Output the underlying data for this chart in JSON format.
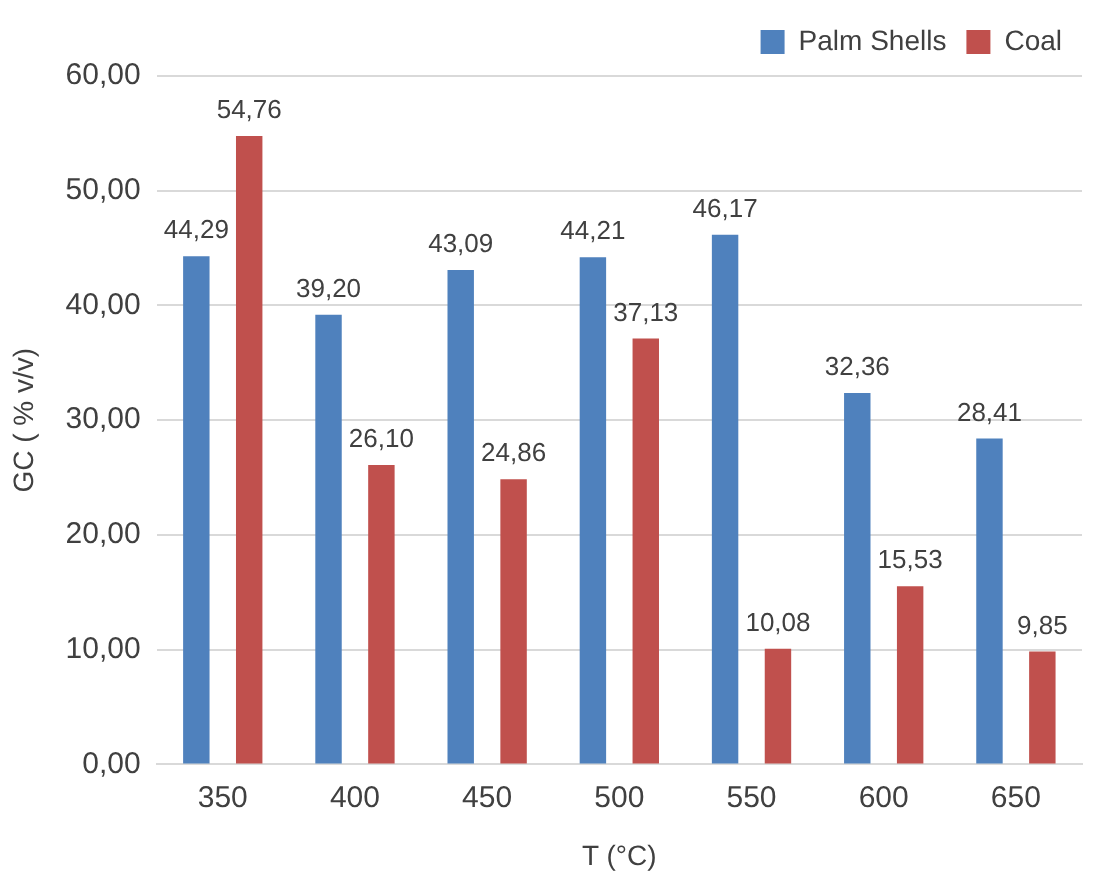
{
  "chart_data": {
    "type": "bar",
    "xlabel": "T (°C)",
    "ylabel": "GC ( % v/v)",
    "categories": [
      "350",
      "400",
      "450",
      "500",
      "550",
      "600",
      "650"
    ],
    "series": [
      {
        "name": "Palm Shells",
        "color": "#4f81bd",
        "values": [
          44.29,
          39.2,
          43.09,
          44.21,
          46.17,
          32.36,
          28.41
        ],
        "value_labels": [
          "44,29",
          "39,20",
          "43,09",
          "44,21",
          "46,17",
          "32,36",
          "28,41"
        ]
      },
      {
        "name": "Coal",
        "color": "#c0504d",
        "values": [
          54.76,
          26.1,
          24.86,
          37.13,
          10.08,
          15.53,
          9.85
        ],
        "value_labels": [
          "54,76",
          "26,10",
          "24,86",
          "37,13",
          "10,08",
          "15,53",
          "9,85"
        ]
      }
    ],
    "ylim": [
      0,
      60
    ],
    "yticks": [
      {
        "value": 0,
        "label": "0,00"
      },
      {
        "value": 10,
        "label": "10,00"
      },
      {
        "value": 20,
        "label": "20,00"
      },
      {
        "value": 30,
        "label": "30,00"
      },
      {
        "value": 40,
        "label": "40,00"
      },
      {
        "value": 50,
        "label": "50,00"
      },
      {
        "value": 60,
        "label": "60,00"
      }
    ],
    "grid": "y",
    "legend": "top right"
  }
}
